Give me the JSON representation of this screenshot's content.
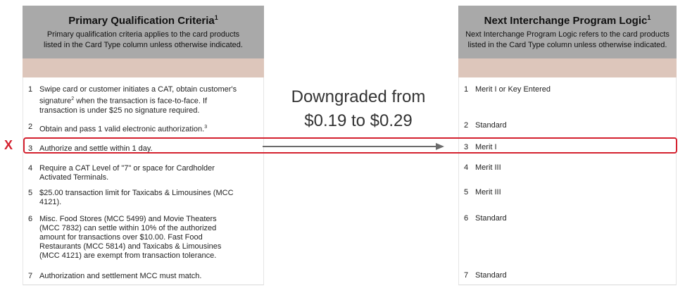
{
  "left_panel": {
    "title": "Primary Qualification Criteria",
    "title_sup": "1",
    "subtitle_line1": "Primary qualification criteria applies to the card products",
    "subtitle_line2": "listed in the Card Type column unless otherwise indicated.",
    "rows": [
      {
        "num": "1",
        "lines": [
          "Swipe card or customer initiates a CAT,  obtain customer's",
          "signature",
          "2",
          " when the transaction is face-to-face.  If",
          "transaction is under $25 no signature required."
        ]
      },
      {
        "num": "2",
        "text": "Obtain and pass 1 valid electronic authorization.",
        "sup": "3"
      },
      {
        "num": "3",
        "text": "Authorize and settle within 1 day."
      },
      {
        "num": "4",
        "lines": [
          "Require a CAT Level of \"7\" or space for Cardholder",
          "Activated Terminals."
        ]
      },
      {
        "num": "5",
        "lines": [
          "$25.00 transaction limit for Taxicabs & Limousines (MCC",
          "4121)."
        ]
      },
      {
        "num": "6",
        "lines": [
          "Misc. Food Stores (MCC 5499) and Movie Theaters",
          "(MCC 7832) can settle within 10% of the authorized",
          "amount for transactions over $10.00.  Fast Food",
          "Restaurants (MCC  5814) and Taxicabs & Limousines",
          "(MCC 4121) are exempt from transaction tolerance."
        ]
      },
      {
        "num": "7",
        "text": "Authorization and settlement MCC must match."
      }
    ]
  },
  "right_panel": {
    "title": "Next Interchange Program Logic",
    "title_sup": "1",
    "subtitle_line1": "Next Interchange Program Logic refers to the card products",
    "subtitle_line2": "listed in the Card Type column unless otherwise indicated.",
    "rows": [
      {
        "num": "1",
        "text": "Merit I or Key Entered"
      },
      {
        "num": "2",
        "text": "Standard"
      },
      {
        "num": "3",
        "text": "Merit I"
      },
      {
        "num": "4",
        "text": "Merit III"
      },
      {
        "num": "5",
        "text": "Merit III"
      },
      {
        "num": "6",
        "text": "Standard"
      },
      {
        "num": "7",
        "text": "Standard"
      }
    ]
  },
  "annotation": {
    "line1": "Downgraded from",
    "line2": "$0.19 to $0.29",
    "x_mark": "X",
    "highlight_color": "#d4212f",
    "arrow_color": "#6b6b6b"
  }
}
